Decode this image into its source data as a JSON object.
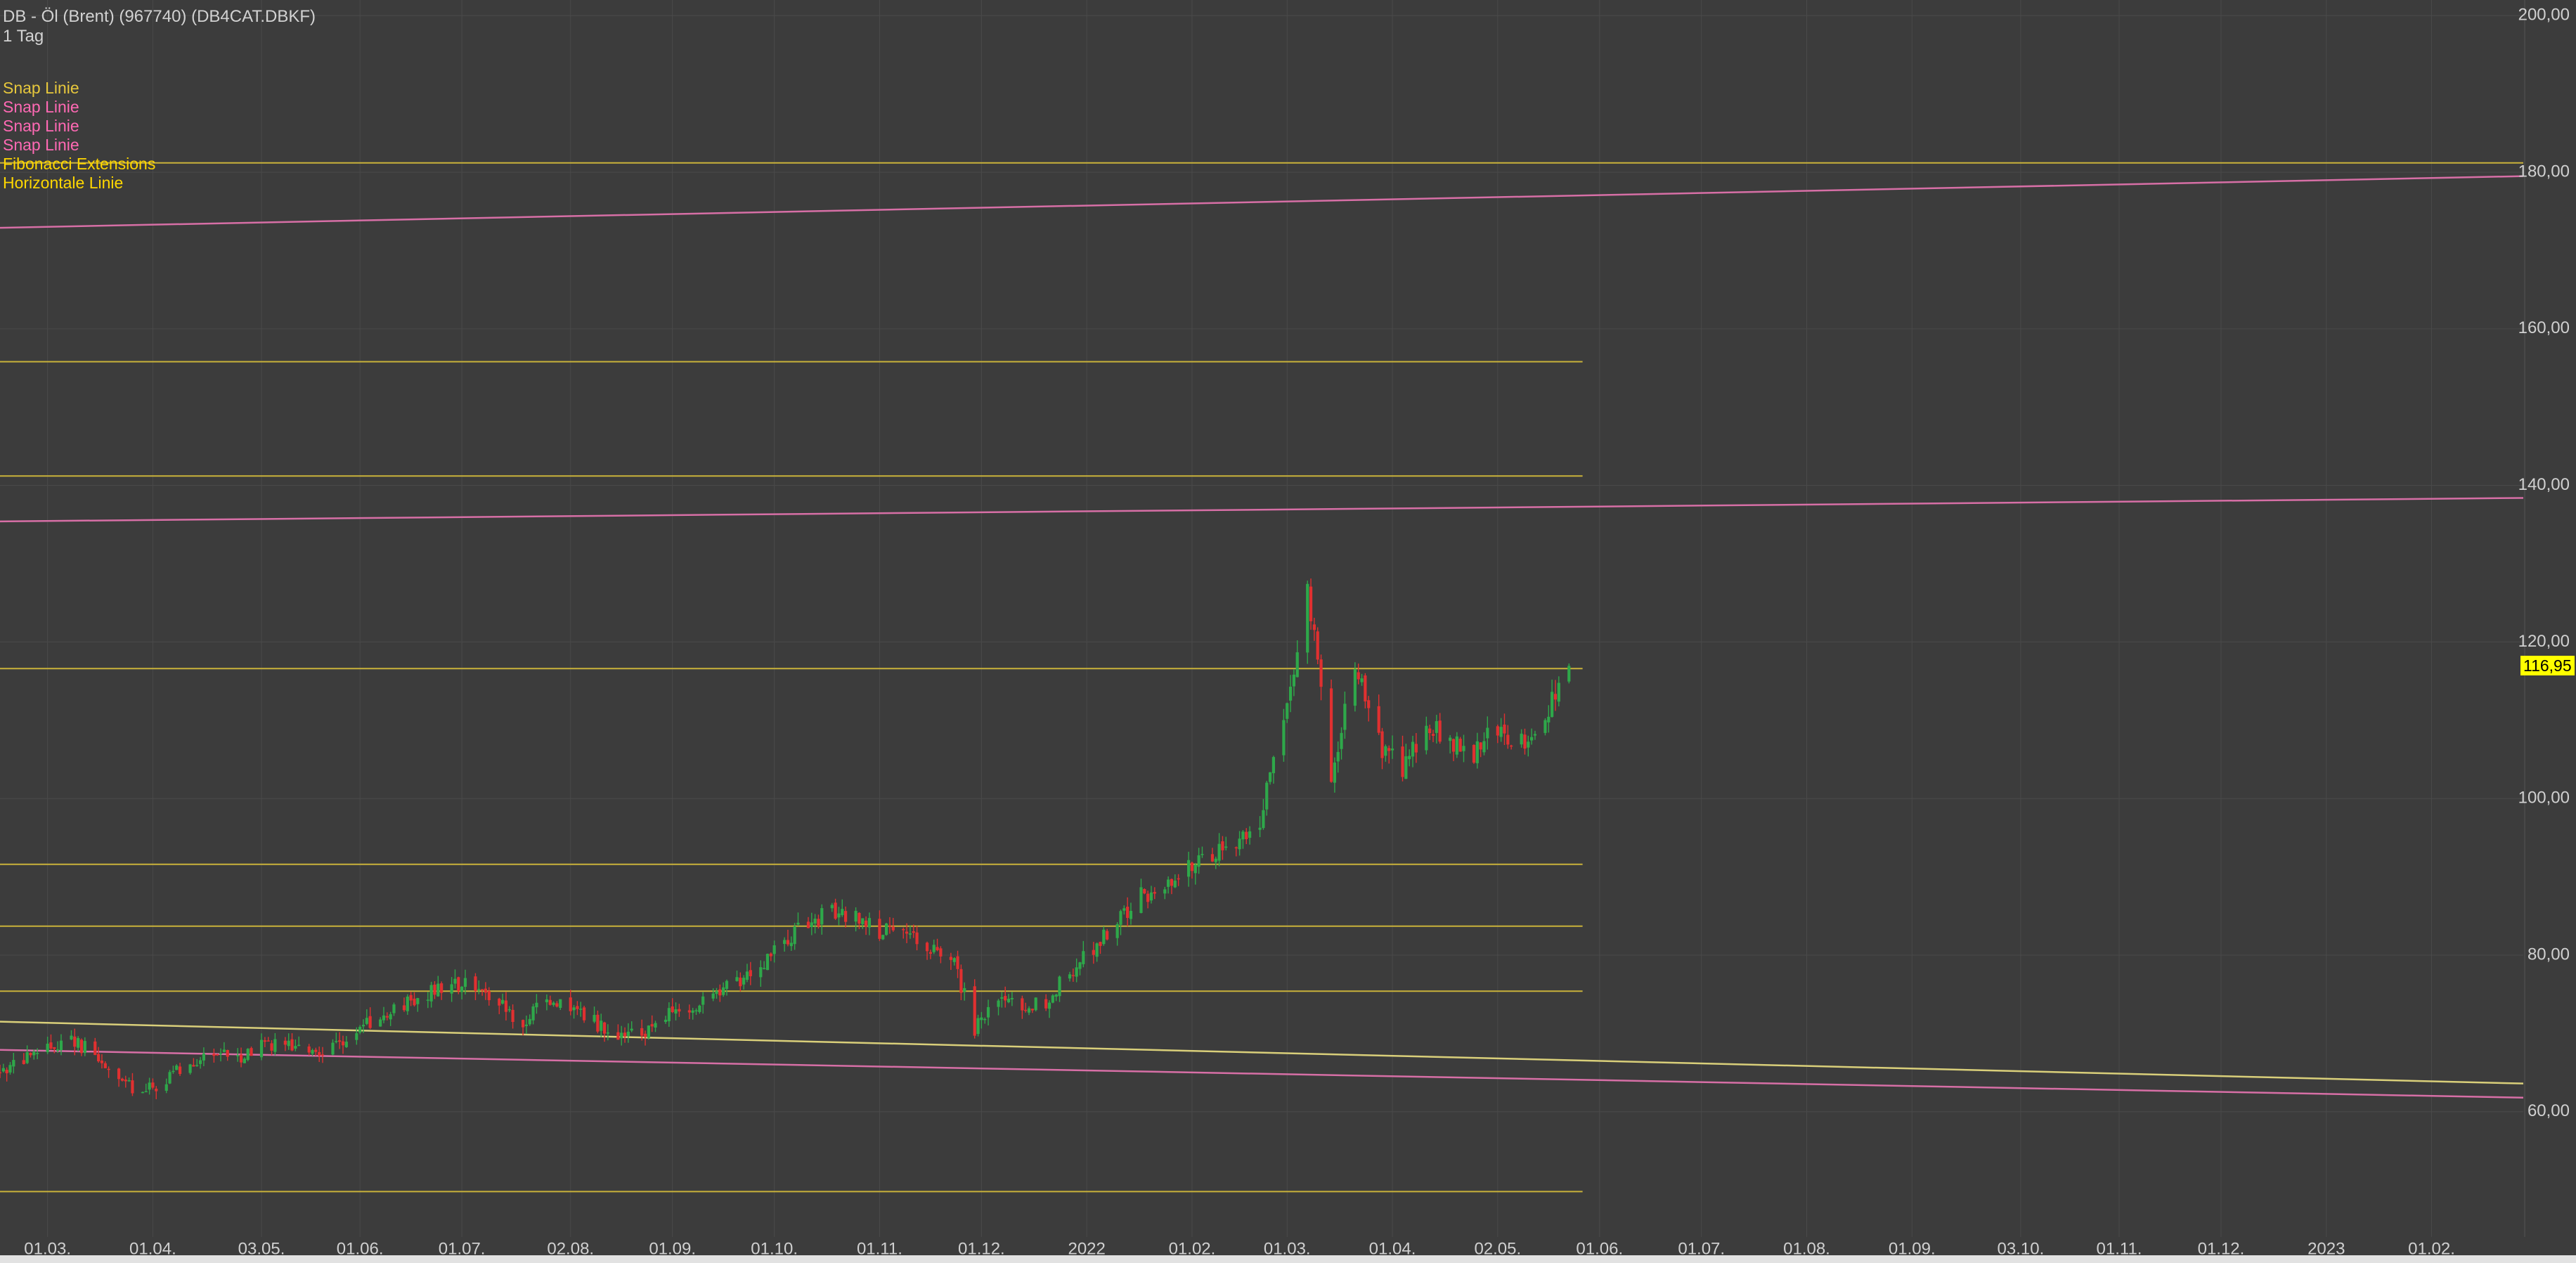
{
  "header": {
    "instrument": "DB - Öl (Brent) (967740) (DB4CAT.DBKF)",
    "interval": "1 Tag"
  },
  "legend": [
    {
      "label": "Snap Linie",
      "color": "#e6c73c"
    },
    {
      "label": "Snap Linie",
      "color": "#ff69b4"
    },
    {
      "label": "Snap Linie",
      "color": "#ff69b4"
    },
    {
      "label": "Snap Linie",
      "color": "#ff69b4"
    },
    {
      "label": "Fibonacci Extensions",
      "color": "#ffd700"
    },
    {
      "label": "Horizontale Linie",
      "color": "#ffd700"
    }
  ],
  "colors": {
    "background": "#3c3c3c",
    "grid": "#4a4a4a",
    "up_candle": "#2ea84a",
    "down_candle": "#e03030",
    "fib_line": "#c9b23a",
    "snap_yellow": "#d9cf7a",
    "snap_pink": "#d76fa6",
    "axis_text": "#d0d0d0",
    "price_badge_bg": "#ffff00"
  },
  "chart_data": {
    "type": "candlestick",
    "ylim": [
      44,
      202
    ],
    "y_ticks": [
      60,
      80,
      100,
      120,
      140,
      160,
      180,
      200
    ],
    "y_tick_labels": [
      "60,00",
      "80,00",
      "100,00",
      "120,00",
      "140,00",
      "160,00",
      "180,00",
      "200,00"
    ],
    "x_range": [
      "2021-02-15",
      "2023-02-28"
    ],
    "x_ticks": [
      {
        "date": "2021-03-01",
        "label": "01.03."
      },
      {
        "date": "2021-04-01",
        "label": "01.04."
      },
      {
        "date": "2021-05-03",
        "label": "03.05."
      },
      {
        "date": "2021-06-01",
        "label": "01.06."
      },
      {
        "date": "2021-07-01",
        "label": "01.07."
      },
      {
        "date": "2021-08-02",
        "label": "02.08."
      },
      {
        "date": "2021-09-01",
        "label": "01.09."
      },
      {
        "date": "2021-10-01",
        "label": "01.10."
      },
      {
        "date": "2021-11-01",
        "label": "01.11."
      },
      {
        "date": "2021-12-01",
        "label": "01.12."
      },
      {
        "date": "2022-01-01",
        "label": "2022"
      },
      {
        "date": "2022-02-01",
        "label": "01.02."
      },
      {
        "date": "2022-03-01",
        "label": "01.03."
      },
      {
        "date": "2022-04-01",
        "label": "01.04."
      },
      {
        "date": "2022-05-02",
        "label": "02.05."
      },
      {
        "date": "2022-06-01",
        "label": "01.06."
      },
      {
        "date": "2022-07-01",
        "label": "01.07."
      },
      {
        "date": "2022-08-01",
        "label": "01.08."
      },
      {
        "date": "2022-09-01",
        "label": "01.09."
      },
      {
        "date": "2022-10-03",
        "label": "03.10."
      },
      {
        "date": "2022-11-01",
        "label": "01.11."
      },
      {
        "date": "2022-12-01",
        "label": "01.12."
      },
      {
        "date": "2023-01-01",
        "label": "2023"
      },
      {
        "date": "2023-02-01",
        "label": "01.02."
      }
    ],
    "last_price": 116.95,
    "last_price_label": "116,95",
    "horizontal_lines": [
      {
        "value": 181.2,
        "start": "2021-02-15",
        "end": "2023-02-28",
        "color": "#c9b23a"
      },
      {
        "value": 155.8,
        "start": "2021-02-15",
        "end": "2022-05-27",
        "color": "#c9b23a"
      },
      {
        "value": 141.2,
        "start": "2021-02-15",
        "end": "2022-05-27",
        "color": "#c9b23a"
      },
      {
        "value": 116.6,
        "start": "2021-02-15",
        "end": "2022-05-27",
        "color": "#c9b23a"
      },
      {
        "value": 91.6,
        "start": "2021-02-15",
        "end": "2022-05-27",
        "color": "#c9b23a"
      },
      {
        "value": 83.7,
        "start": "2021-02-15",
        "end": "2022-05-27",
        "color": "#c9b23a"
      },
      {
        "value": 75.4,
        "start": "2021-02-15",
        "end": "2022-05-27",
        "color": "#c9b23a"
      },
      {
        "value": 49.8,
        "start": "2021-02-15",
        "end": "2022-05-27",
        "color": "#c9b23a"
      }
    ],
    "trend_lines": [
      {
        "start": [
          "2021-02-15",
          71.5
        ],
        "end": [
          "2023-02-28",
          63.6
        ],
        "color": "#d9cf7a"
      },
      {
        "start": [
          "2021-02-15",
          67.9
        ],
        "end": [
          "2023-02-28",
          61.8
        ],
        "color": "#d76fa6"
      },
      {
        "start": [
          "2021-02-15",
          135.4
        ],
        "end": [
          "2023-02-28",
          138.4
        ],
        "color": "#d76fa6"
      },
      {
        "start": [
          "2021-02-15",
          172.9
        ],
        "end": [
          "2023-02-28",
          179.5
        ],
        "color": "#d76fa6"
      }
    ],
    "close_path": [
      [
        "2021-02-15",
        65.0
      ],
      [
        "2021-02-22",
        66.5
      ],
      [
        "2021-03-01",
        68.0
      ],
      [
        "2021-03-08",
        69.5
      ],
      [
        "2021-03-15",
        67.0
      ],
      [
        "2021-03-22",
        64.0
      ],
      [
        "2021-03-29",
        62.5
      ],
      [
        "2021-04-05",
        64.0
      ],
      [
        "2021-04-12",
        66.5
      ],
      [
        "2021-04-19",
        67.5
      ],
      [
        "2021-04-26",
        67.0
      ],
      [
        "2021-05-03",
        68.5
      ],
      [
        "2021-05-10",
        69.0
      ],
      [
        "2021-05-17",
        67.5
      ],
      [
        "2021-05-24",
        68.5
      ],
      [
        "2021-05-31",
        70.5
      ],
      [
        "2021-06-07",
        72.0
      ],
      [
        "2021-06-14",
        73.5
      ],
      [
        "2021-06-21",
        75.0
      ],
      [
        "2021-06-28",
        76.0
      ],
      [
        "2021-07-05",
        76.5
      ],
      [
        "2021-07-12",
        74.0
      ],
      [
        "2021-07-19",
        71.0
      ],
      [
        "2021-07-26",
        74.5
      ],
      [
        "2021-08-02",
        73.0
      ],
      [
        "2021-08-09",
        71.5
      ],
      [
        "2021-08-16",
        69.5
      ],
      [
        "2021-08-23",
        70.0
      ],
      [
        "2021-08-30",
        72.5
      ],
      [
        "2021-09-06",
        73.0
      ],
      [
        "2021-09-13",
        74.5
      ],
      [
        "2021-09-20",
        76.5
      ],
      [
        "2021-09-27",
        79.0
      ],
      [
        "2021-10-04",
        82.0
      ],
      [
        "2021-10-11",
        84.0
      ],
      [
        "2021-10-18",
        85.5
      ],
      [
        "2021-10-25",
        85.0
      ],
      [
        "2021-11-01",
        83.0
      ],
      [
        "2021-11-08",
        82.5
      ],
      [
        "2021-11-15",
        81.0
      ],
      [
        "2021-11-22",
        80.5
      ],
      [
        "2021-11-29",
        70.5
      ],
      [
        "2021-12-06",
        74.0
      ],
      [
        "2021-12-13",
        73.5
      ],
      [
        "2021-12-20",
        74.0
      ],
      [
        "2021-12-27",
        78.0
      ],
      [
        "2022-01-03",
        81.0
      ],
      [
        "2022-01-10",
        84.0
      ],
      [
        "2022-01-17",
        87.5
      ],
      [
        "2022-01-24",
        89.0
      ],
      [
        "2022-01-31",
        91.5
      ],
      [
        "2022-02-07",
        93.0
      ],
      [
        "2022-02-14",
        94.0
      ],
      [
        "2022-02-21",
        97.5
      ],
      [
        "2022-02-28",
        110.0
      ],
      [
        "2022-03-07",
        127.0
      ],
      [
        "2022-03-14",
        103.0
      ],
      [
        "2022-03-21",
        118.0
      ],
      [
        "2022-03-28",
        107.0
      ],
      [
        "2022-04-04",
        104.0
      ],
      [
        "2022-04-11",
        110.0
      ],
      [
        "2022-04-18",
        107.0
      ],
      [
        "2022-04-25",
        105.5
      ],
      [
        "2022-05-02",
        109.0
      ],
      [
        "2022-05-09",
        107.0
      ],
      [
        "2022-05-16",
        111.0
      ],
      [
        "2022-05-23",
        116.95
      ]
    ]
  }
}
